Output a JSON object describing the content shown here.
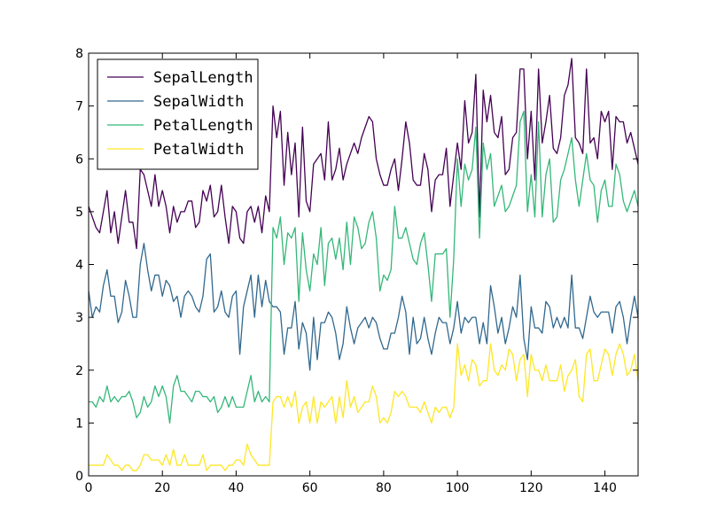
{
  "chart_data": {
    "type": "line",
    "title": "",
    "xlabel": "",
    "ylabel": "",
    "xlim": [
      0,
      149
    ],
    "ylim": [
      0,
      8
    ],
    "x_ticks": [
      0,
      20,
      40,
      60,
      80,
      100,
      120,
      140
    ],
    "y_ticks": [
      0,
      1,
      2,
      3,
      4,
      5,
      6,
      7,
      8
    ],
    "x_tick_labels": [
      "0",
      "20",
      "40",
      "60",
      "80",
      "100",
      "120",
      "140"
    ],
    "y_tick_labels": [
      "0",
      "1",
      "2",
      "3",
      "4",
      "5",
      "6",
      "7",
      "8"
    ],
    "grid": false,
    "legend_position": "top-left",
    "series": [
      {
        "name": "SepalLength",
        "color": "#440154",
        "values": [
          5.1,
          4.9,
          4.7,
          4.6,
          5.0,
          5.4,
          4.6,
          5.0,
          4.4,
          4.9,
          5.4,
          4.8,
          4.8,
          4.3,
          5.8,
          5.7,
          5.4,
          5.1,
          5.7,
          5.1,
          5.4,
          5.1,
          4.6,
          5.1,
          4.8,
          5.0,
          5.0,
          5.2,
          5.2,
          4.7,
          4.8,
          5.4,
          5.2,
          5.5,
          4.9,
          5.0,
          5.5,
          4.9,
          4.4,
          5.1,
          5.0,
          4.5,
          4.4,
          5.0,
          5.1,
          4.8,
          5.1,
          4.6,
          5.3,
          5.0,
          7.0,
          6.4,
          6.9,
          5.5,
          6.5,
          5.7,
          6.3,
          4.9,
          6.6,
          5.2,
          5.0,
          5.9,
          6.0,
          6.1,
          5.6,
          6.7,
          5.6,
          5.8,
          6.2,
          5.6,
          5.9,
          6.1,
          6.3,
          6.1,
          6.4,
          6.6,
          6.8,
          6.7,
          6.0,
          5.7,
          5.5,
          5.5,
          5.8,
          6.0,
          5.4,
          6.0,
          6.7,
          6.3,
          5.6,
          5.5,
          5.5,
          6.1,
          5.8,
          5.0,
          5.6,
          5.7,
          5.7,
          6.2,
          5.1,
          5.7,
          6.3,
          5.8,
          7.1,
          6.3,
          6.5,
          7.6,
          4.9,
          7.3,
          6.7,
          7.2,
          6.5,
          6.4,
          6.8,
          5.7,
          5.8,
          6.4,
          6.5,
          7.7,
          7.7,
          6.0,
          6.9,
          5.6,
          7.7,
          6.3,
          6.7,
          7.2,
          6.2,
          6.1,
          6.4,
          7.2,
          7.4,
          7.9,
          6.4,
          6.3,
          6.1,
          7.7,
          6.3,
          6.4,
          6.0,
          6.9,
          6.7,
          6.9,
          5.8,
          6.8,
          6.7,
          6.7,
          6.3,
          6.5,
          6.2,
          5.9
        ]
      },
      {
        "name": "SepalWidth",
        "color": "#31688e",
        "values": [
          3.5,
          3.0,
          3.2,
          3.1,
          3.6,
          3.9,
          3.4,
          3.4,
          2.9,
          3.1,
          3.7,
          3.4,
          3.0,
          3.0,
          4.0,
          4.4,
          3.9,
          3.5,
          3.8,
          3.8,
          3.4,
          3.7,
          3.6,
          3.3,
          3.4,
          3.0,
          3.4,
          3.5,
          3.4,
          3.2,
          3.1,
          3.4,
          4.1,
          4.2,
          3.1,
          3.2,
          3.5,
          3.1,
          3.0,
          3.4,
          3.5,
          2.3,
          3.2,
          3.5,
          3.8,
          3.0,
          3.8,
          3.2,
          3.7,
          3.3,
          3.2,
          3.2,
          3.1,
          2.3,
          2.8,
          2.8,
          3.3,
          2.4,
          2.9,
          2.7,
          2.0,
          3.0,
          2.2,
          2.9,
          2.9,
          3.1,
          3.0,
          2.7,
          2.2,
          2.5,
          3.2,
          2.8,
          2.5,
          2.8,
          2.9,
          3.0,
          2.8,
          3.0,
          2.9,
          2.6,
          2.4,
          2.4,
          2.7,
          2.7,
          3.0,
          3.4,
          3.1,
          2.3,
          3.0,
          2.5,
          2.6,
          3.0,
          2.6,
          2.3,
          2.7,
          3.0,
          2.9,
          2.9,
          2.5,
          2.8,
          3.3,
          2.7,
          3.0,
          2.9,
          3.0,
          3.0,
          2.5,
          2.9,
          2.5,
          3.6,
          3.2,
          2.7,
          3.0,
          2.5,
          2.8,
          3.2,
          3.0,
          3.8,
          2.6,
          2.2,
          3.2,
          2.8,
          2.8,
          2.7,
          3.3,
          3.2,
          2.8,
          3.0,
          2.8,
          3.0,
          2.8,
          3.8,
          2.8,
          2.8,
          2.6,
          3.0,
          3.4,
          3.1,
          3.0,
          3.1,
          3.1,
          3.1,
          2.7,
          3.2,
          3.3,
          3.0,
          2.5,
          3.0,
          3.4,
          3.0
        ]
      },
      {
        "name": "PetalLength",
        "color": "#35b779",
        "values": [
          1.4,
          1.4,
          1.3,
          1.5,
          1.4,
          1.7,
          1.4,
          1.5,
          1.4,
          1.5,
          1.5,
          1.6,
          1.4,
          1.1,
          1.2,
          1.5,
          1.3,
          1.4,
          1.7,
          1.5,
          1.7,
          1.5,
          1.0,
          1.7,
          1.9,
          1.6,
          1.6,
          1.5,
          1.4,
          1.6,
          1.6,
          1.5,
          1.5,
          1.4,
          1.5,
          1.2,
          1.3,
          1.5,
          1.3,
          1.5,
          1.3,
          1.3,
          1.3,
          1.6,
          1.9,
          1.4,
          1.6,
          1.4,
          1.5,
          1.4,
          4.7,
          4.5,
          4.9,
          4.0,
          4.6,
          4.5,
          4.7,
          3.3,
          4.6,
          3.9,
          3.5,
          4.2,
          4.0,
          4.7,
          3.6,
          4.4,
          4.5,
          4.1,
          4.5,
          3.9,
          4.8,
          4.0,
          4.9,
          4.7,
          4.3,
          4.4,
          4.8,
          5.0,
          4.5,
          3.5,
          3.8,
          3.7,
          3.9,
          5.1,
          4.5,
          4.5,
          4.7,
          4.4,
          4.1,
          4.0,
          4.4,
          4.6,
          4.0,
          3.3,
          4.2,
          4.2,
          4.2,
          4.3,
          3.0,
          4.1,
          6.0,
          5.1,
          5.9,
          5.6,
          5.8,
          6.6,
          4.5,
          6.3,
          5.8,
          6.1,
          5.1,
          5.3,
          5.5,
          5.0,
          5.1,
          5.3,
          5.5,
          6.7,
          6.9,
          5.0,
          5.7,
          4.9,
          6.7,
          4.9,
          5.7,
          6.0,
          4.8,
          4.9,
          5.6,
          5.8,
          6.1,
          6.4,
          5.6,
          5.1,
          5.6,
          6.1,
          5.6,
          5.5,
          4.8,
          5.4,
          5.6,
          5.1,
          5.1,
          5.9,
          5.7,
          5.2,
          5.0,
          5.2,
          5.4,
          5.1
        ]
      },
      {
        "name": "PetalWidth",
        "color": "#fde725",
        "values": [
          0.2,
          0.2,
          0.2,
          0.2,
          0.2,
          0.4,
          0.3,
          0.2,
          0.2,
          0.1,
          0.2,
          0.2,
          0.1,
          0.1,
          0.2,
          0.4,
          0.4,
          0.3,
          0.3,
          0.3,
          0.2,
          0.4,
          0.2,
          0.5,
          0.2,
          0.2,
          0.4,
          0.2,
          0.2,
          0.2,
          0.2,
          0.4,
          0.1,
          0.2,
          0.2,
          0.2,
          0.2,
          0.1,
          0.2,
          0.2,
          0.3,
          0.3,
          0.2,
          0.6,
          0.4,
          0.3,
          0.2,
          0.2,
          0.2,
          0.2,
          1.4,
          1.5,
          1.5,
          1.3,
          1.5,
          1.3,
          1.6,
          1.0,
          1.3,
          1.4,
          1.0,
          1.5,
          1.0,
          1.4,
          1.3,
          1.4,
          1.5,
          1.0,
          1.5,
          1.1,
          1.8,
          1.3,
          1.5,
          1.2,
          1.3,
          1.4,
          1.4,
          1.7,
          1.5,
          1.0,
          1.1,
          1.0,
          1.2,
          1.6,
          1.5,
          1.6,
          1.5,
          1.3,
          1.3,
          1.3,
          1.2,
          1.4,
          1.2,
          1.0,
          1.3,
          1.2,
          1.3,
          1.3,
          1.1,
          1.3,
          2.5,
          1.9,
          2.1,
          1.8,
          2.2,
          2.1,
          1.7,
          1.8,
          1.8,
          2.5,
          2.0,
          1.9,
          2.1,
          2.0,
          2.4,
          2.3,
          1.8,
          2.2,
          2.3,
          1.5,
          2.3,
          2.0,
          2.0,
          1.8,
          2.1,
          1.8,
          1.8,
          1.8,
          2.1,
          1.6,
          1.9,
          2.0,
          2.2,
          1.5,
          1.4,
          2.3,
          2.4,
          1.8,
          1.8,
          2.1,
          2.4,
          2.3,
          1.9,
          2.3,
          2.5,
          2.3,
          1.9,
          2.0,
          2.3,
          1.8
        ]
      }
    ]
  }
}
